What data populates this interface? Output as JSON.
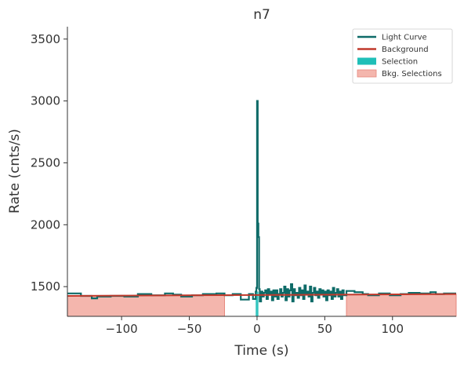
{
  "chart_data": {
    "type": "line",
    "title": "n7",
    "xlabel": "Time (s)",
    "ylabel": "Rate (cnts/s)",
    "xlim": [
      -140,
      147
    ],
    "ylim": [
      1260,
      3600
    ],
    "xticks": [
      -100,
      -50,
      0,
      50,
      100
    ],
    "yticks": [
      1500,
      2000,
      2500,
      3000,
      3500
    ],
    "tick_labels": {
      "x": [
        "−100",
        "−50",
        "0",
        "50",
        "100"
      ],
      "y": [
        "1500",
        "2000",
        "2500",
        "3000",
        "3500"
      ]
    },
    "grid": false,
    "legend_position": "top-right",
    "colors": {
      "light_curve": "#0e6b68",
      "background": "#c0392b",
      "selection": "#1fbfb8",
      "bkg_selection_fill": "#f4b6ad",
      "bkg_selection_edge": "#e6877c"
    },
    "legend": [
      {
        "label": "Light Curve",
        "kind": "line",
        "color": "#0e6b68"
      },
      {
        "label": "Background",
        "kind": "line",
        "color": "#c0392b"
      },
      {
        "label": "Selection",
        "kind": "patch",
        "color": "#1fbfb8"
      },
      {
        "label": "Bkg. Selections",
        "kind": "patch",
        "color": "#f4b6ad"
      }
    ],
    "series": [
      {
        "name": "Light Curve",
        "style": "steps-post",
        "x": [
          -140,
          -130,
          -122,
          -118,
          -108,
          -98,
          -88,
          -78,
          -68,
          -62,
          -56,
          -48,
          -40,
          -30,
          -24,
          -18,
          -12,
          -6,
          -3,
          -1,
          -0.5,
          0,
          0.5,
          1,
          1.5,
          2,
          3,
          4,
          5,
          6,
          7,
          8,
          9,
          10,
          11,
          12,
          13,
          14,
          15,
          16,
          17,
          18,
          19,
          20,
          21,
          22,
          23,
          24,
          25,
          26,
          27,
          28,
          29,
          30,
          31,
          32,
          33,
          34,
          35,
          36,
          37,
          38,
          39,
          40,
          41,
          42,
          43,
          44,
          45,
          46,
          47,
          48,
          49,
          50,
          51,
          52,
          53,
          54,
          55,
          56,
          57,
          58,
          59,
          60,
          61,
          62,
          63,
          64,
          66,
          72,
          78,
          82,
          90,
          98,
          106,
          112,
          120,
          128,
          132,
          138,
          147
        ],
        "y": [
          1445,
          1425,
          1405,
          1420,
          1425,
          1420,
          1440,
          1430,
          1445,
          1435,
          1420,
          1430,
          1440,
          1445,
          1430,
          1440,
          1395,
          1440,
          1400,
          1460,
          1490,
          3000,
          2010,
          1900,
          1480,
          1380,
          1460,
          1420,
          1450,
          1470,
          1400,
          1480,
          1440,
          1460,
          1390,
          1470,
          1420,
          1470,
          1400,
          1440,
          1480,
          1420,
          1450,
          1500,
          1390,
          1480,
          1420,
          1470,
          1520,
          1380,
          1480,
          1430,
          1450,
          1410,
          1490,
          1430,
          1470,
          1400,
          1510,
          1440,
          1460,
          1420,
          1500,
          1380,
          1450,
          1490,
          1430,
          1460,
          1410,
          1480,
          1440,
          1470,
          1420,
          1460,
          1390,
          1470,
          1430,
          1460,
          1400,
          1490,
          1420,
          1450,
          1480,
          1420,
          1460,
          1400,
          1470,
          1430,
          1465,
          1455,
          1440,
          1430,
          1445,
          1430,
          1440,
          1450,
          1445,
          1455,
          1440,
          1445,
          1445
        ]
      },
      {
        "name": "Background",
        "x": [
          -140,
          147
        ],
        "y": [
          1425,
          1440
        ]
      }
    ],
    "selection": [
      [
        -1,
        1
      ]
    ],
    "bkg_selections": [
      [
        -140,
        -24
      ],
      [
        66,
        147
      ]
    ]
  }
}
